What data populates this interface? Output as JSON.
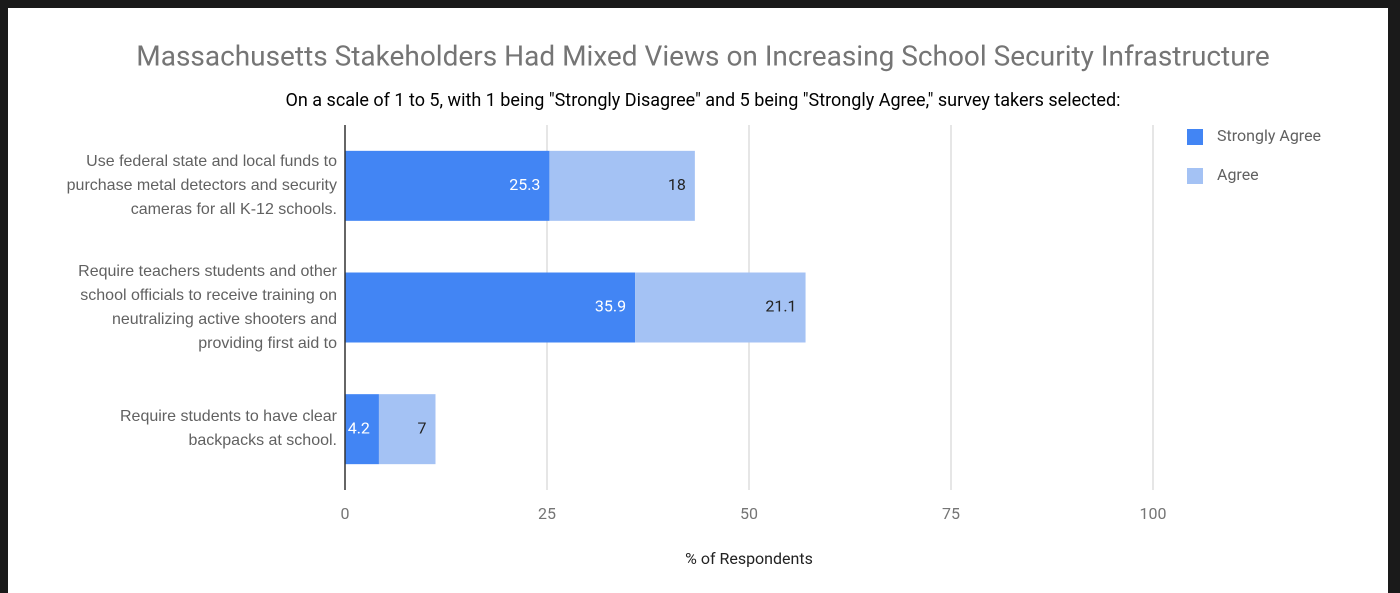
{
  "chart_data": {
    "type": "stacked_bar_horizontal",
    "title": "Massachusetts Stakeholders Had Mixed Views on Increasing School Security Infrastructure",
    "subtitle": "On a scale of 1 to 5, with 1 being \"Strongly Disagree\" and 5 being \"Strongly Agree,\" survey takers selected:",
    "categories": [
      "Use federal state and local funds to purchase metal detectors and security cameras for all K-12 schools.",
      "Require teachers students and other school officials to receive training on neutralizing active shooters and providing first aid to",
      "Require students to have clear backpacks at school."
    ],
    "series": [
      {
        "name": "Strongly Agree",
        "color": "#4285f4",
        "values": [
          25.3,
          35.9,
          4.2
        ]
      },
      {
        "name": "Agree",
        "color": "#a4c2f4",
        "values": [
          18,
          21.1,
          7
        ]
      }
    ],
    "xlabel": "% of Respondents",
    "xlim": [
      0,
      100
    ],
    "xticks": [
      0,
      25,
      50,
      75,
      100
    ],
    "grid": true,
    "legend": "right"
  }
}
